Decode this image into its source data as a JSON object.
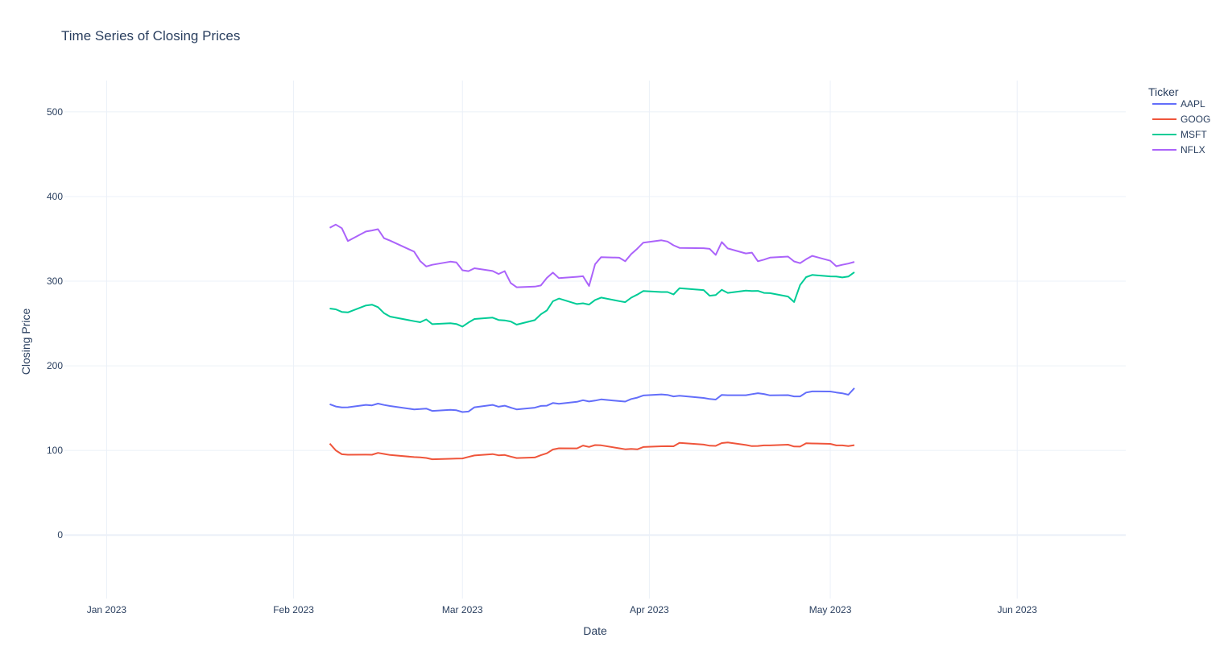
{
  "chart_data": {
    "type": "line",
    "title": "Time Series of Closing Prices",
    "xlabel": "Date",
    "ylabel": "Closing Price",
    "xlim": [
      "2022-12-25",
      "2023-06-19"
    ],
    "ylim": [
      -75,
      537
    ],
    "x_ticks": [
      {
        "date": "2023-01-01",
        "label": "Jan 2023"
      },
      {
        "date": "2023-02-01",
        "label": "Feb 2023"
      },
      {
        "date": "2023-03-01",
        "label": "Mar 2023"
      },
      {
        "date": "2023-04-01",
        "label": "Apr 2023"
      },
      {
        "date": "2023-05-01",
        "label": "May 2023"
      },
      {
        "date": "2023-06-01",
        "label": "Jun 2023"
      }
    ],
    "y_ticks": [
      0,
      100,
      200,
      300,
      400,
      500
    ],
    "grid": true,
    "legend": {
      "title": "Ticker",
      "position": "top-right"
    },
    "series": [
      {
        "name": "AAPL",
        "color": "#636efa",
        "points": [
          [
            "2023-02-07",
            154.6
          ],
          [
            "2023-02-08",
            151.9
          ],
          [
            "2023-02-09",
            150.9
          ],
          [
            "2023-02-10",
            151.0
          ],
          [
            "2023-02-13",
            153.8
          ],
          [
            "2023-02-14",
            153.2
          ],
          [
            "2023-02-15",
            155.3
          ],
          [
            "2023-02-16",
            153.7
          ],
          [
            "2023-02-17",
            152.5
          ],
          [
            "2023-02-21",
            148.5
          ],
          [
            "2023-02-22",
            148.9
          ],
          [
            "2023-02-23",
            149.4
          ],
          [
            "2023-02-24",
            146.7
          ],
          [
            "2023-02-27",
            147.9
          ],
          [
            "2023-02-28",
            147.4
          ],
          [
            "2023-03-01",
            145.3
          ],
          [
            "2023-03-02",
            145.9
          ],
          [
            "2023-03-03",
            151.0
          ],
          [
            "2023-03-06",
            153.8
          ],
          [
            "2023-03-07",
            151.6
          ],
          [
            "2023-03-08",
            152.9
          ],
          [
            "2023-03-09",
            150.6
          ],
          [
            "2023-03-10",
            148.5
          ],
          [
            "2023-03-13",
            150.5
          ],
          [
            "2023-03-14",
            152.6
          ],
          [
            "2023-03-15",
            152.9
          ],
          [
            "2023-03-16",
            156.0
          ],
          [
            "2023-03-17",
            155.0
          ],
          [
            "2023-03-20",
            157.4
          ],
          [
            "2023-03-21",
            159.3
          ],
          [
            "2023-03-22",
            157.8
          ],
          [
            "2023-03-23",
            158.9
          ],
          [
            "2023-03-24",
            160.3
          ],
          [
            "2023-03-27",
            158.3
          ],
          [
            "2023-03-28",
            157.7
          ],
          [
            "2023-03-29",
            160.8
          ],
          [
            "2023-03-30",
            162.4
          ],
          [
            "2023-03-31",
            164.9
          ],
          [
            "2023-04-03",
            166.2
          ],
          [
            "2023-04-04",
            165.6
          ],
          [
            "2023-04-05",
            163.8
          ],
          [
            "2023-04-06",
            164.7
          ],
          [
            "2023-04-10",
            162.0
          ],
          [
            "2023-04-11",
            160.8
          ],
          [
            "2023-04-12",
            160.1
          ],
          [
            "2023-04-13",
            165.6
          ],
          [
            "2023-04-14",
            165.2
          ],
          [
            "2023-04-17",
            165.2
          ],
          [
            "2023-04-18",
            166.5
          ],
          [
            "2023-04-19",
            167.6
          ],
          [
            "2023-04-20",
            166.7
          ],
          [
            "2023-04-21",
            165.0
          ],
          [
            "2023-04-24",
            165.3
          ],
          [
            "2023-04-25",
            163.8
          ],
          [
            "2023-04-26",
            163.8
          ],
          [
            "2023-04-27",
            168.4
          ],
          [
            "2023-04-28",
            169.7
          ],
          [
            "2023-05-01",
            169.6
          ],
          [
            "2023-05-02",
            168.5
          ],
          [
            "2023-05-03",
            167.5
          ],
          [
            "2023-05-04",
            165.8
          ],
          [
            "2023-05-05",
            173.6
          ]
        ]
      },
      {
        "name": "GOOG",
        "color": "#ef553b",
        "points": [
          [
            "2023-02-07",
            108.0
          ],
          [
            "2023-02-08",
            100.0
          ],
          [
            "2023-02-09",
            95.5
          ],
          [
            "2023-02-10",
            94.9
          ],
          [
            "2023-02-13",
            95.0
          ],
          [
            "2023-02-14",
            94.9
          ],
          [
            "2023-02-15",
            97.1
          ],
          [
            "2023-02-16",
            95.8
          ],
          [
            "2023-02-17",
            94.6
          ],
          [
            "2023-02-21",
            92.1
          ],
          [
            "2023-02-22",
            91.8
          ],
          [
            "2023-02-23",
            91.1
          ],
          [
            "2023-02-24",
            89.6
          ],
          [
            "2023-02-27",
            90.1
          ],
          [
            "2023-02-28",
            90.3
          ],
          [
            "2023-03-01",
            90.5
          ],
          [
            "2023-03-02",
            92.3
          ],
          [
            "2023-03-03",
            94.0
          ],
          [
            "2023-03-06",
            95.7
          ],
          [
            "2023-03-07",
            94.2
          ],
          [
            "2023-03-08",
            94.6
          ],
          [
            "2023-03-09",
            92.7
          ],
          [
            "2023-03-10",
            91.0
          ],
          [
            "2023-03-13",
            91.7
          ],
          [
            "2023-03-14",
            94.3
          ],
          [
            "2023-03-15",
            96.6
          ],
          [
            "2023-03-16",
            101.1
          ],
          [
            "2023-03-17",
            102.5
          ],
          [
            "2023-03-20",
            102.4
          ],
          [
            "2023-03-21",
            105.7
          ],
          [
            "2023-03-22",
            104.1
          ],
          [
            "2023-03-23",
            106.3
          ],
          [
            "2023-03-24",
            106.0
          ],
          [
            "2023-03-27",
            102.5
          ],
          [
            "2023-03-28",
            101.4
          ],
          [
            "2023-03-29",
            101.8
          ],
          [
            "2023-03-30",
            101.3
          ],
          [
            "2023-03-31",
            104.0
          ],
          [
            "2023-04-03",
            104.9
          ],
          [
            "2023-04-04",
            105.0
          ],
          [
            "2023-04-05",
            104.9
          ],
          [
            "2023-04-06",
            108.9
          ],
          [
            "2023-04-10",
            106.9
          ],
          [
            "2023-04-11",
            105.6
          ],
          [
            "2023-04-12",
            105.4
          ],
          [
            "2023-04-13",
            108.7
          ],
          [
            "2023-04-14",
            109.5
          ],
          [
            "2023-04-17",
            106.4
          ],
          [
            "2023-04-18",
            105.1
          ],
          [
            "2023-04-19",
            105.3
          ],
          [
            "2023-04-20",
            105.9
          ],
          [
            "2023-04-21",
            105.9
          ],
          [
            "2023-04-24",
            106.8
          ],
          [
            "2023-04-25",
            104.6
          ],
          [
            "2023-04-26",
            104.5
          ],
          [
            "2023-04-27",
            108.4
          ],
          [
            "2023-04-28",
            108.2
          ],
          [
            "2023-05-01",
            107.7
          ],
          [
            "2023-05-02",
            105.9
          ],
          [
            "2023-05-03",
            105.9
          ],
          [
            "2023-05-04",
            105.2
          ],
          [
            "2023-05-05",
            106.2
          ]
        ]
      },
      {
        "name": "MSFT",
        "color": "#00cc96",
        "points": [
          [
            "2023-02-07",
            267.6
          ],
          [
            "2023-02-08",
            266.7
          ],
          [
            "2023-02-09",
            263.6
          ],
          [
            "2023-02-10",
            263.1
          ],
          [
            "2023-02-13",
            271.3
          ],
          [
            "2023-02-14",
            272.2
          ],
          [
            "2023-02-15",
            269.3
          ],
          [
            "2023-02-16",
            262.2
          ],
          [
            "2023-02-17",
            258.1
          ],
          [
            "2023-02-21",
            252.7
          ],
          [
            "2023-02-22",
            251.5
          ],
          [
            "2023-02-23",
            254.8
          ],
          [
            "2023-02-24",
            249.2
          ],
          [
            "2023-02-27",
            250.2
          ],
          [
            "2023-02-28",
            249.4
          ],
          [
            "2023-03-01",
            246.3
          ],
          [
            "2023-03-02",
            251.1
          ],
          [
            "2023-03-03",
            255.3
          ],
          [
            "2023-03-06",
            256.9
          ],
          [
            "2023-03-07",
            254.1
          ],
          [
            "2023-03-08",
            253.7
          ],
          [
            "2023-03-09",
            252.3
          ],
          [
            "2023-03-10",
            248.6
          ],
          [
            "2023-03-13",
            253.9
          ],
          [
            "2023-03-14",
            260.8
          ],
          [
            "2023-03-15",
            265.4
          ],
          [
            "2023-03-16",
            276.2
          ],
          [
            "2023-03-17",
            279.4
          ],
          [
            "2023-03-20",
            273.0
          ],
          [
            "2023-03-21",
            273.8
          ],
          [
            "2023-03-22",
            272.3
          ],
          [
            "2023-03-23",
            277.7
          ],
          [
            "2023-03-24",
            280.6
          ],
          [
            "2023-03-27",
            276.4
          ],
          [
            "2023-03-28",
            275.2
          ],
          [
            "2023-03-29",
            280.5
          ],
          [
            "2023-03-30",
            284.1
          ],
          [
            "2023-03-31",
            288.3
          ],
          [
            "2023-04-03",
            287.2
          ],
          [
            "2023-04-04",
            287.2
          ],
          [
            "2023-04-05",
            284.3
          ],
          [
            "2023-04-06",
            291.6
          ],
          [
            "2023-04-10",
            289.4
          ],
          [
            "2023-04-11",
            282.8
          ],
          [
            "2023-04-12",
            283.5
          ],
          [
            "2023-04-13",
            289.8
          ],
          [
            "2023-04-14",
            286.1
          ],
          [
            "2023-04-17",
            288.8
          ],
          [
            "2023-04-18",
            288.4
          ],
          [
            "2023-04-19",
            288.5
          ],
          [
            "2023-04-20",
            286.1
          ],
          [
            "2023-04-21",
            285.8
          ],
          [
            "2023-04-24",
            281.8
          ],
          [
            "2023-04-25",
            275.4
          ],
          [
            "2023-04-26",
            295.4
          ],
          [
            "2023-04-27",
            304.8
          ],
          [
            "2023-04-28",
            307.3
          ],
          [
            "2023-05-01",
            305.6
          ],
          [
            "2023-05-02",
            305.4
          ],
          [
            "2023-05-03",
            304.4
          ],
          [
            "2023-05-04",
            305.4
          ],
          [
            "2023-05-05",
            310.6
          ]
        ]
      },
      {
        "name": "NFLX",
        "color": "#ab63fa",
        "points": [
          [
            "2023-02-07",
            363.0
          ],
          [
            "2023-02-08",
            366.8
          ],
          [
            "2023-02-09",
            362.5
          ],
          [
            "2023-02-10",
            347.4
          ],
          [
            "2023-02-13",
            358.6
          ],
          [
            "2023-02-14",
            359.9
          ],
          [
            "2023-02-15",
            361.4
          ],
          [
            "2023-02-16",
            350.7
          ],
          [
            "2023-02-17",
            347.9
          ],
          [
            "2023-02-21",
            334.8
          ],
          [
            "2023-02-22",
            323.7
          ],
          [
            "2023-02-23",
            317.3
          ],
          [
            "2023-02-24",
            319.3
          ],
          [
            "2023-02-27",
            323.0
          ],
          [
            "2023-02-28",
            322.1
          ],
          [
            "2023-03-01",
            312.9
          ],
          [
            "2023-03-02",
            311.8
          ],
          [
            "2023-03-03",
            315.2
          ],
          [
            "2023-03-06",
            312.0
          ],
          [
            "2023-03-07",
            308.5
          ],
          [
            "2023-03-08",
            311.8
          ],
          [
            "2023-03-09",
            297.8
          ],
          [
            "2023-03-10",
            292.8
          ],
          [
            "2023-03-13",
            293.5
          ],
          [
            "2023-03-14",
            294.9
          ],
          [
            "2023-03-15",
            303.8
          ],
          [
            "2023-03-16",
            310.1
          ],
          [
            "2023-03-17",
            303.5
          ],
          [
            "2023-03-20",
            305.1
          ],
          [
            "2023-03-21",
            305.8
          ],
          [
            "2023-03-22",
            294.3
          ],
          [
            "2023-03-23",
            320.0
          ],
          [
            "2023-03-24",
            328.4
          ],
          [
            "2023-03-27",
            327.7
          ],
          [
            "2023-03-28",
            323.5
          ],
          [
            "2023-03-29",
            332.0
          ],
          [
            "2023-03-30",
            338.4
          ],
          [
            "2023-03-31",
            345.5
          ],
          [
            "2023-04-03",
            348.3
          ],
          [
            "2023-04-04",
            346.8
          ],
          [
            "2023-04-05",
            342.4
          ],
          [
            "2023-04-06",
            339.3
          ],
          [
            "2023-04-10",
            338.9
          ],
          [
            "2023-04-11",
            338.2
          ],
          [
            "2023-04-12",
            331.0
          ],
          [
            "2023-04-13",
            346.2
          ],
          [
            "2023-04-14",
            338.6
          ],
          [
            "2023-04-17",
            332.7
          ],
          [
            "2023-04-18",
            333.7
          ],
          [
            "2023-04-19",
            323.5
          ],
          [
            "2023-04-20",
            325.4
          ],
          [
            "2023-04-21",
            327.8
          ],
          [
            "2023-04-24",
            329.0
          ],
          [
            "2023-04-25",
            323.3
          ],
          [
            "2023-04-26",
            321.2
          ],
          [
            "2023-04-27",
            325.9
          ],
          [
            "2023-04-28",
            329.9
          ],
          [
            "2023-05-01",
            324.1
          ],
          [
            "2023-05-02",
            317.6
          ],
          [
            "2023-05-03",
            319.3
          ],
          [
            "2023-05-04",
            320.8
          ],
          [
            "2023-05-05",
            322.8
          ]
        ]
      }
    ]
  }
}
